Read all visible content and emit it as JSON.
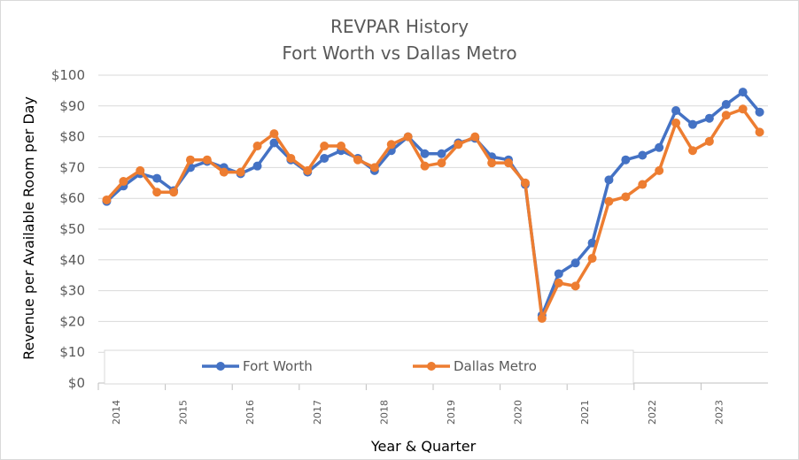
{
  "chart_data": {
    "type": "line",
    "title": "REVPAR History",
    "subtitle": "Fort Worth vs Dallas Metro",
    "xlabel": "Year & Quarter",
    "ylabel": "Revenue per Available Room per Day",
    "ylim": [
      0,
      100
    ],
    "y_ticks": [
      "$0",
      "$10",
      "$20",
      "$30",
      "$40",
      "$50",
      "$60",
      "$70",
      "$80",
      "$90",
      "$100"
    ],
    "year_labels": [
      "2014",
      "2015",
      "2016",
      "2017",
      "2018",
      "2019",
      "2020",
      "2021",
      "2022",
      "2023"
    ],
    "grid": true,
    "legend_position": "bottom",
    "x": [
      "2014 Q1",
      "2014 Q2",
      "2014 Q3",
      "2014 Q4",
      "2015 Q1",
      "2015 Q2",
      "2015 Q3",
      "2015 Q4",
      "2016 Q1",
      "2016 Q2",
      "2016 Q3",
      "2016 Q4",
      "2017 Q1",
      "2017 Q2",
      "2017 Q3",
      "2017 Q4",
      "2018 Q1",
      "2018 Q2",
      "2018 Q3",
      "2018 Q4",
      "2019 Q1",
      "2019 Q2",
      "2019 Q3",
      "2019 Q4",
      "2020 Q1",
      "2020 Q2",
      "2020 Q3",
      "2020 Q4",
      "2021 Q1",
      "2021 Q2",
      "2021 Q3",
      "2021 Q4",
      "2022 Q1",
      "2022 Q2",
      "2022 Q3",
      "2022 Q4",
      "2023 Q1",
      "2023 Q2",
      "2023 Q3",
      "2023 Q4"
    ],
    "series": [
      {
        "name": "Fort Worth",
        "color": "#4472C4",
        "values": [
          59,
          64,
          68,
          66.5,
          62.5,
          70,
          72,
          70,
          68,
          70.5,
          78,
          72.5,
          68.5,
          73,
          75.5,
          73,
          69,
          75.5,
          80,
          74.5,
          74.5,
          78,
          79.5,
          73.5,
          72.5,
          64.5,
          22,
          35.5,
          39,
          45.5,
          66,
          72.5,
          74,
          76.5,
          88.5,
          84,
          86,
          90.5,
          94.5,
          88
        ]
      },
      {
        "name": "Dallas Metro",
        "color": "#ED7D31",
        "values": [
          59.5,
          65.5,
          69,
          62,
          62,
          72.5,
          72.5,
          68.5,
          68.5,
          77,
          81,
          73,
          69,
          77,
          77,
          72.5,
          70,
          77.5,
          80,
          70.5,
          71.5,
          77.5,
          80,
          71.5,
          71.5,
          65,
          21,
          32.5,
          31.5,
          40.5,
          59,
          60.5,
          64.5,
          69,
          84.5,
          75.5,
          78.5,
          87,
          89,
          81.5
        ]
      }
    ]
  }
}
